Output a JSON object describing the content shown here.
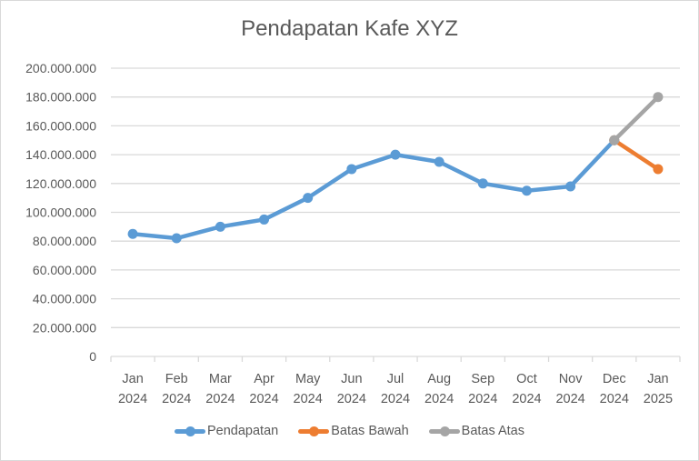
{
  "chart_data": {
    "type": "line",
    "title": "Pendapatan Kafe XYZ",
    "xlabel": "",
    "ylabel": "",
    "categories": [
      "Jan 2024",
      "Feb 2024",
      "Mar 2024",
      "Apr 2024",
      "May 2024",
      "Jun 2024",
      "Jul 2024",
      "Aug 2024",
      "Sep 2024",
      "Oct 2024",
      "Nov 2024",
      "Dec 2024",
      "Jan 2025"
    ],
    "category_lines": [
      [
        "Jan",
        "2024"
      ],
      [
        "Feb",
        "2024"
      ],
      [
        "Mar",
        "2024"
      ],
      [
        "Apr",
        "2024"
      ],
      [
        "May",
        "2024"
      ],
      [
        "Jun",
        "2024"
      ],
      [
        "Jul",
        "2024"
      ],
      [
        "Aug",
        "2024"
      ],
      [
        "Sep",
        "2024"
      ],
      [
        "Oct",
        "2024"
      ],
      [
        "Nov",
        "2024"
      ],
      [
        "Dec",
        "2024"
      ],
      [
        "Jan",
        "2025"
      ]
    ],
    "series": [
      {
        "name": "Pendapatan",
        "color": "#5b9bd5",
        "values": [
          85000000,
          82000000,
          90000000,
          95000000,
          110000000,
          130000000,
          140000000,
          135000000,
          120000000,
          115000000,
          118000000,
          150000000,
          null
        ]
      },
      {
        "name": "Batas Bawah",
        "color": "#ed7d31",
        "values": [
          null,
          null,
          null,
          null,
          null,
          null,
          null,
          null,
          null,
          null,
          null,
          150000000,
          130000000
        ]
      },
      {
        "name": "Batas Atas",
        "color": "#a5a5a5",
        "values": [
          null,
          null,
          null,
          null,
          null,
          null,
          null,
          null,
          null,
          null,
          null,
          150000000,
          180000000
        ]
      }
    ],
    "ylim": [
      0,
      200000000
    ],
    "yticks": [
      0,
      20000000,
      40000000,
      60000000,
      80000000,
      100000000,
      120000000,
      140000000,
      160000000,
      180000000,
      200000000
    ],
    "ytick_labels": [
      "0",
      "20.000.000",
      "40.000.000",
      "60.000.000",
      "80.000.000",
      "100.000.000",
      "120.000.000",
      "140.000.000",
      "160.000.000",
      "180.000.000",
      "200.000.000"
    ],
    "grid": true,
    "legend_position": "bottom"
  }
}
